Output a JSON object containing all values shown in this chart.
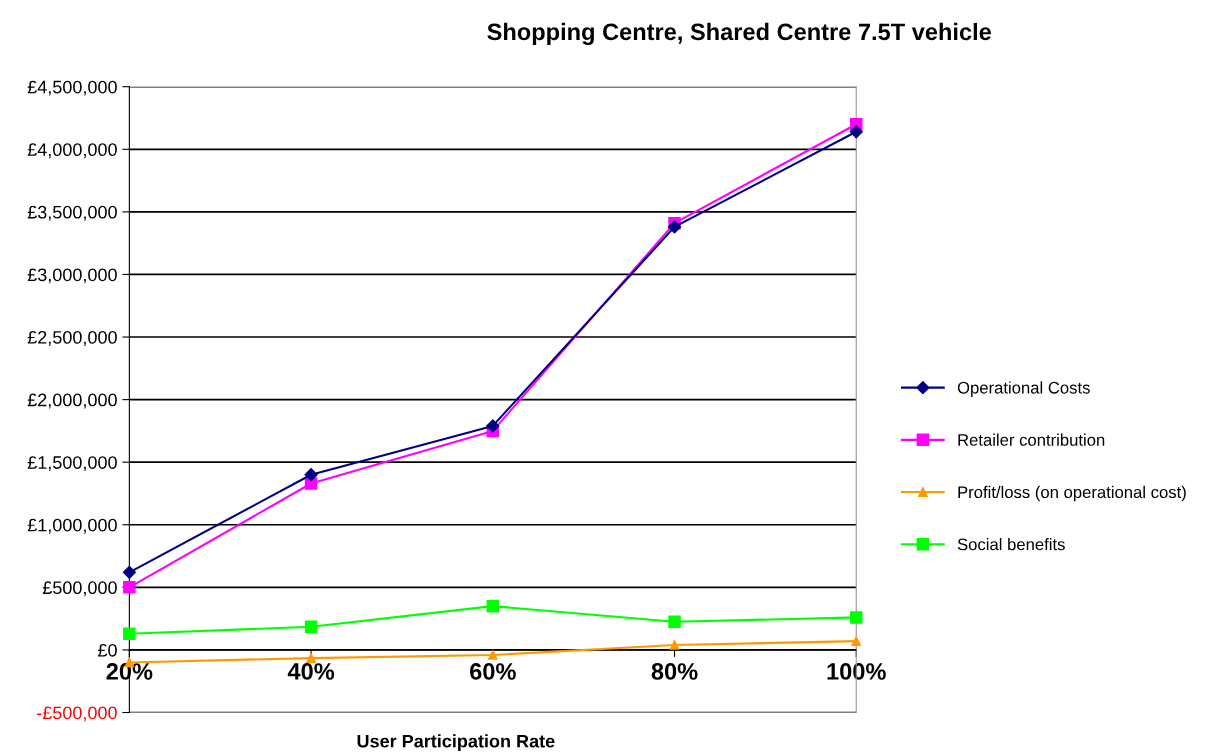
{
  "chart_data": {
    "type": "line",
    "title": "Shopping Centre, Shared Centre 7.5T vehicle",
    "xlabel": "User Participation Rate",
    "categories": [
      "20%",
      "40%",
      "60%",
      "80%",
      "100%"
    ],
    "series": [
      {
        "name": "Operational Costs",
        "color": "#000080",
        "marker": "diamond",
        "values": [
          620000,
          1400000,
          1790000,
          3380000,
          4140000
        ]
      },
      {
        "name": "Retailer contribution",
        "color": "#ff00ff",
        "marker": "square",
        "values": [
          500000,
          1330000,
          1750000,
          3410000,
          4200000
        ]
      },
      {
        "name": "Profit/loss (on operational cost)",
        "color": "#ff9900",
        "marker": "triangle",
        "values": [
          -100000,
          -65000,
          -40000,
          40000,
          70000
        ]
      },
      {
        "name": "Social benefits",
        "color": "#00ff00",
        "marker": "square",
        "values": [
          130000,
          185000,
          350000,
          225000,
          260000
        ]
      }
    ],
    "ylim": [
      -500000,
      4500000
    ],
    "yticks": [
      {
        "value": -500000,
        "label": "-£500,000"
      },
      {
        "value": 0,
        "label": "£0"
      },
      {
        "value": 500000,
        "label": "£500,000"
      },
      {
        "value": 1000000,
        "label": "£1,000,000"
      },
      {
        "value": 1500000,
        "label": "£1,500,000"
      },
      {
        "value": 2000000,
        "label": "£2,000,000"
      },
      {
        "value": 2500000,
        "label": "£2,500,000"
      },
      {
        "value": 3000000,
        "label": "£3,000,000"
      },
      {
        "value": 3500000,
        "label": "£3,500,000"
      },
      {
        "value": 4000000,
        "label": "£4,000,000"
      },
      {
        "value": 4500000,
        "label": "£4,500,000"
      }
    ],
    "grid": "y",
    "legend": "right",
    "line_style": "solid"
  }
}
